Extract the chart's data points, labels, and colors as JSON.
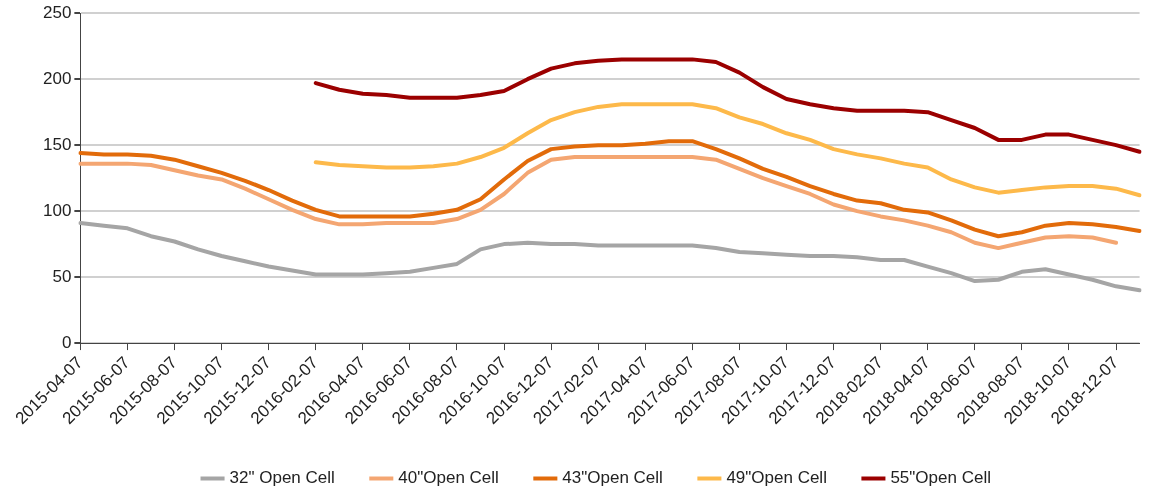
{
  "chart_data": {
    "type": "line",
    "categories": [
      "2015-04-07",
      null,
      "2015-06-07",
      null,
      "2015-08-07",
      null,
      "2015-10-07",
      null,
      "2015-12-07",
      null,
      "2016-02-07",
      null,
      "2016-04-07",
      null,
      "2016-06-07",
      null,
      "2016-08-07",
      null,
      "2016-10-07",
      null,
      "2016-12-07",
      null,
      "2017-02-07",
      null,
      "2017-04-07",
      null,
      "2017-06-07",
      null,
      "2017-08-07",
      null,
      "2017-10-07",
      null,
      "2017-12-07",
      null,
      "2018-02-07",
      null,
      "2018-04-07",
      null,
      "2018-06-07",
      null,
      "2018-08-07",
      null,
      "2018-10-07",
      null,
      "2018-12-07",
      null
    ],
    "series": [
      {
        "name": "32\" Open Cell",
        "color": "#a5a5a5",
        "values": [
          91,
          89,
          87,
          81,
          77,
          71,
          66,
          62,
          58,
          55,
          52,
          52,
          52,
          53,
          54,
          57,
          60,
          71,
          75,
          76,
          75,
          75,
          74,
          74,
          74,
          74,
          74,
          72,
          69,
          68,
          67,
          66,
          66,
          65,
          63,
          63,
          58,
          53,
          47,
          48,
          54,
          56,
          52,
          48,
          43,
          40
        ]
      },
      {
        "name": "40\"Open Cell",
        "color": "#f4a672",
        "values": [
          136,
          136,
          136,
          135,
          131,
          127,
          124,
          117,
          109,
          101,
          94,
          90,
          90,
          91,
          91,
          91,
          94,
          101,
          113,
          129,
          139,
          141,
          141,
          141,
          141,
          141,
          141,
          139,
          132,
          125,
          119,
          113,
          105,
          100,
          96,
          93,
          89,
          84,
          76,
          72,
          76,
          80,
          81,
          80,
          76,
          null
        ]
      },
      {
        "name": "43\"Open Cell",
        "color": "#e26b0a",
        "values": [
          144,
          143,
          143,
          142,
          139,
          134,
          129,
          123,
          116,
          108,
          101,
          96,
          96,
          96,
          96,
          98,
          101,
          109,
          124,
          138,
          147,
          149,
          150,
          150,
          151,
          153,
          153,
          147,
          140,
          132,
          126,
          119,
          113,
          108,
          106,
          101,
          99,
          93,
          86,
          81,
          84,
          89,
          91,
          90,
          88,
          85
        ]
      },
      {
        "name": "49\"Open Cell",
        "color": "#fdb94a",
        "values": [
          null,
          null,
          null,
          null,
          null,
          null,
          null,
          null,
          null,
          null,
          137,
          135,
          134,
          133,
          133,
          134,
          136,
          141,
          148,
          159,
          169,
          175,
          179,
          181,
          181,
          181,
          181,
          178,
          171,
          166,
          159,
          154,
          147,
          143,
          140,
          136,
          133,
          124,
          118,
          114,
          116,
          118,
          119,
          119,
          117,
          112
        ]
      },
      {
        "name": "55\"Open Cell",
        "color": "#9b0000",
        "values": [
          null,
          null,
          null,
          null,
          null,
          null,
          null,
          null,
          null,
          null,
          197,
          192,
          189,
          188,
          186,
          186,
          186,
          188,
          191,
          200,
          208,
          212,
          214,
          215,
          215,
          215,
          215,
          213,
          205,
          194,
          185,
          181,
          178,
          176,
          176,
          176,
          175,
          169,
          163,
          154,
          154,
          158,
          158,
          154,
          150,
          145
        ]
      }
    ],
    "ylim": [
      0,
      250
    ],
    "yticks": [
      0,
      50,
      100,
      150,
      200,
      250
    ],
    "grid": "y",
    "legend": "bottom",
    "marker": "none",
    "line_style": "solid"
  }
}
